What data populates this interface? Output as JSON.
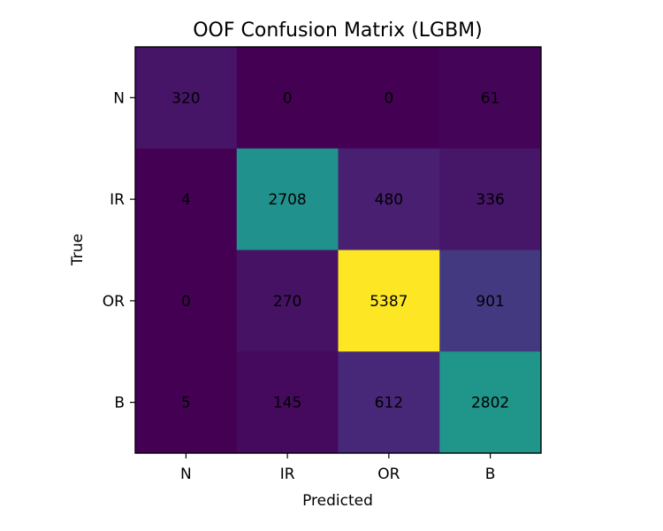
{
  "chart_data": {
    "type": "heatmap",
    "title": "OOF Confusion Matrix (LGBM)",
    "xlabel": "Predicted",
    "ylabel": "True",
    "x_categories": [
      "N",
      "IR",
      "OR",
      "B"
    ],
    "y_categories": [
      "N",
      "IR",
      "OR",
      "B"
    ],
    "values": [
      [
        320,
        0,
        0,
        61
      ],
      [
        4,
        2708,
        480,
        336
      ],
      [
        0,
        270,
        5387,
        901
      ],
      [
        5,
        145,
        612,
        2802
      ]
    ],
    "colormap": "viridis",
    "vmin": 0,
    "vmax": 5387
  }
}
